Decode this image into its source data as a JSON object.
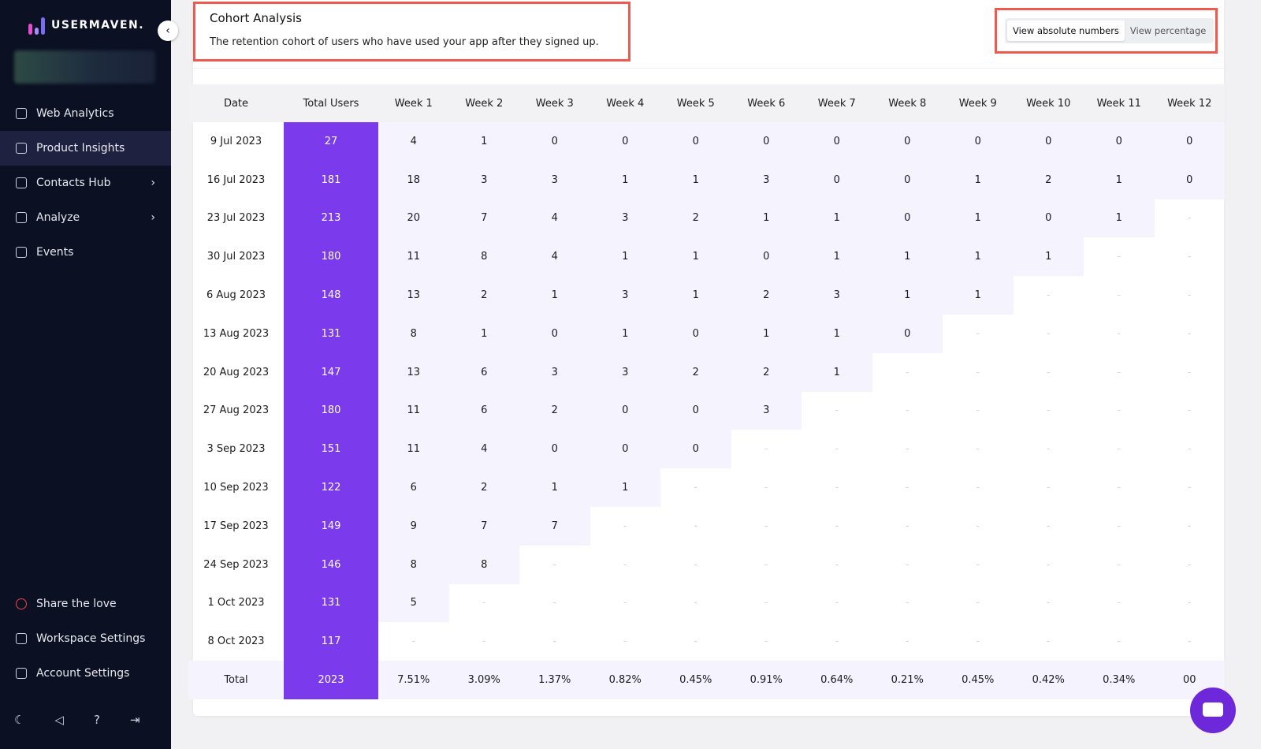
{
  "sidebar": {
    "logo": "USERMAVEN.",
    "nav": [
      "Web Analytics",
      "Product Insights",
      "Contacts Hub",
      "Analyze",
      "Events"
    ],
    "bottom": [
      "Share the love",
      "Workspace Settings",
      "Account Settings"
    ]
  },
  "header": {
    "title": "Cohort Analysis",
    "subtitle": "The retention cohort of users who have used your app after they signed up.",
    "toggles": [
      "View absolute numbers",
      "View percentage"
    ]
  },
  "table": {
    "columns": [
      "Date",
      "Total Users",
      "Week 1",
      "Week 2",
      "Week 3",
      "Week 4",
      "Week 5",
      "Week 6",
      "Week 7",
      "Week 8",
      "Week 9",
      "Week 10",
      "Week 11",
      "Week 12"
    ],
    "rows": [
      [
        "9 Jul 2023",
        "27",
        "4",
        "1",
        "0",
        "0",
        "0",
        "0",
        "0",
        "0",
        "0",
        "0",
        "0",
        "0"
      ],
      [
        "16 Jul 2023",
        "181",
        "18",
        "3",
        "3",
        "1",
        "1",
        "3",
        "0",
        "0",
        "1",
        "2",
        "1",
        "0"
      ],
      [
        "23 Jul 2023",
        "213",
        "20",
        "7",
        "4",
        "3",
        "2",
        "1",
        "1",
        "0",
        "1",
        "0",
        "1",
        "-"
      ],
      [
        "30 Jul 2023",
        "180",
        "11",
        "8",
        "4",
        "1",
        "1",
        "0",
        "1",
        "1",
        "1",
        "1",
        "-",
        "-"
      ],
      [
        "6 Aug 2023",
        "148",
        "13",
        "2",
        "1",
        "3",
        "1",
        "2",
        "3",
        "1",
        "1",
        "-",
        "-",
        "-"
      ],
      [
        "13 Aug 2023",
        "131",
        "8",
        "1",
        "0",
        "1",
        "0",
        "1",
        "1",
        "0",
        "-",
        "-",
        "-",
        "-"
      ],
      [
        "20 Aug 2023",
        "147",
        "13",
        "6",
        "3",
        "3",
        "2",
        "2",
        "1",
        "-",
        "-",
        "-",
        "-",
        "-"
      ],
      [
        "27 Aug 2023",
        "180",
        "11",
        "6",
        "2",
        "0",
        "0",
        "3",
        "-",
        "-",
        "-",
        "-",
        "-",
        "-"
      ],
      [
        "3 Sep 2023",
        "151",
        "11",
        "4",
        "0",
        "0",
        "0",
        "-",
        "-",
        "-",
        "-",
        "-",
        "-",
        "-"
      ],
      [
        "10 Sep 2023",
        "122",
        "6",
        "2",
        "1",
        "1",
        "-",
        "-",
        "-",
        "-",
        "-",
        "-",
        "-",
        "-"
      ],
      [
        "17 Sep 2023",
        "149",
        "9",
        "7",
        "7",
        "-",
        "-",
        "-",
        "-",
        "-",
        "-",
        "-",
        "-",
        "-"
      ],
      [
        "24 Sep 2023",
        "146",
        "8",
        "8",
        "-",
        "-",
        "-",
        "-",
        "-",
        "-",
        "-",
        "-",
        "-",
        "-"
      ],
      [
        "1 Oct 2023",
        "131",
        "5",
        "-",
        "-",
        "-",
        "-",
        "-",
        "-",
        "-",
        "-",
        "-",
        "-",
        "-"
      ],
      [
        "8 Oct 2023",
        "117",
        "-",
        "-",
        "-",
        "-",
        "-",
        "-",
        "-",
        "-",
        "-",
        "-",
        "-",
        "-"
      ]
    ],
    "total": [
      "Total",
      "2023",
      "7.51%",
      "3.09%",
      "1.37%",
      "0.82%",
      "0.45%",
      "0.91%",
      "0.64%",
      "0.21%",
      "0.45%",
      "0.42%",
      "0.34%",
      "00"
    ]
  }
}
